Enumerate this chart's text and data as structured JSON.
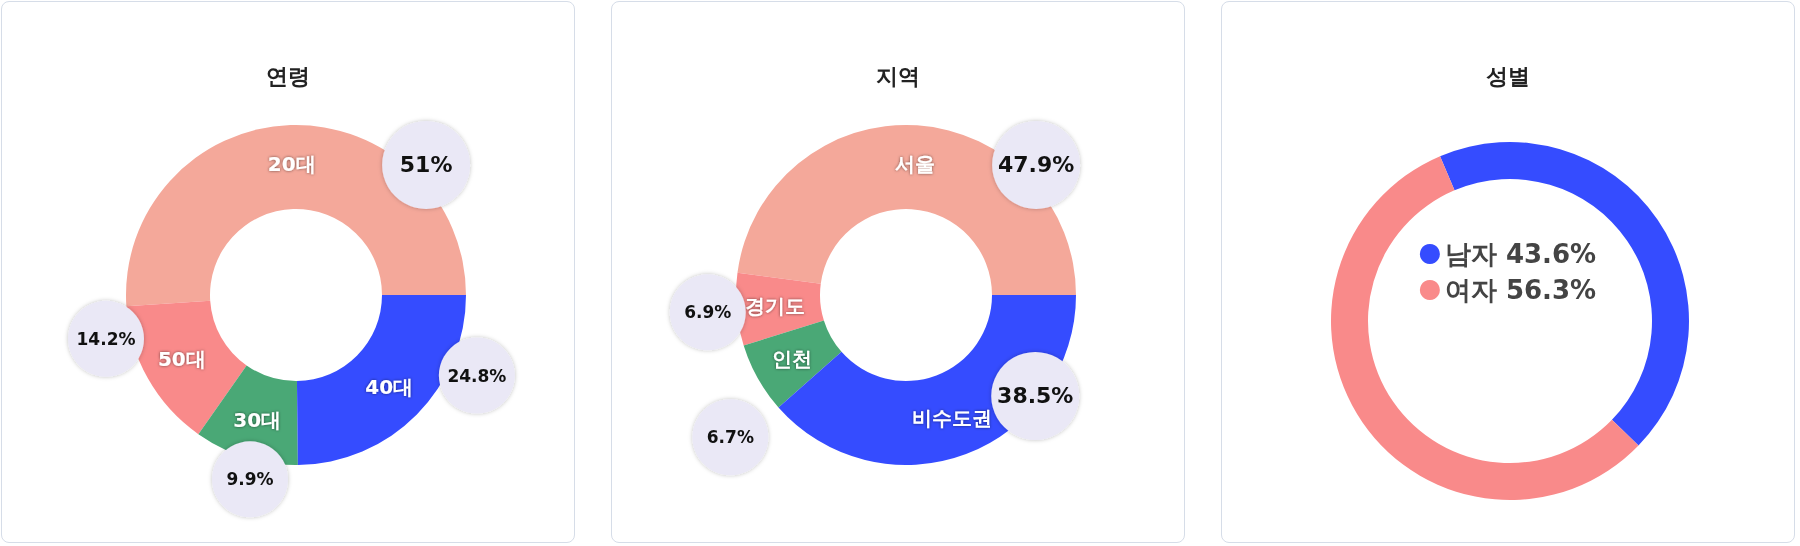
{
  "chart_data": [
    {
      "type": "donut",
      "title": "연령",
      "categories": [
        "20대",
        "50대",
        "30대",
        "40대"
      ],
      "values": [
        51,
        14.2,
        9.9,
        24.8
      ],
      "colors": [
        "#f4a89a",
        "#f98a8a",
        "#4aa876",
        "#354cff"
      ],
      "value_labels": [
        "51%",
        "14.2%",
        "9.9%",
        "24.8%"
      ],
      "legend": false
    },
    {
      "type": "donut",
      "title": "지역",
      "categories": [
        "서울",
        "경기도",
        "인천",
        "비수도권"
      ],
      "values": [
        47.9,
        6.9,
        6.7,
        38.5
      ],
      "colors": [
        "#f4a89a",
        "#f98a8a",
        "#4aa876",
        "#354cff"
      ],
      "value_labels": [
        "47.9%",
        "6.9%",
        "6.7%",
        "38.5%"
      ],
      "legend": false
    },
    {
      "type": "donut",
      "title": "성별",
      "categories": [
        "남자",
        "여자"
      ],
      "values": [
        43.6,
        56.3
      ],
      "colors": [
        "#354cff",
        "#f98a8a"
      ],
      "value_labels": [
        "43.6%",
        "56.3%"
      ],
      "legend": "center"
    }
  ]
}
